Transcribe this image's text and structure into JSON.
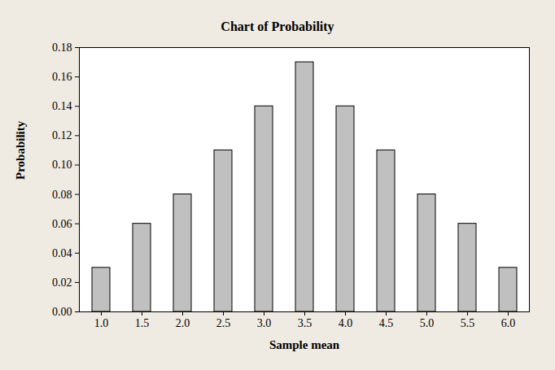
{
  "chart_data": {
    "type": "bar",
    "title": "Chart of Probability",
    "x_label": "Sample mean",
    "y_label": "Probability",
    "categories": [
      "1.0",
      "1.5",
      "2.0",
      "2.5",
      "3.0",
      "3.5",
      "4.0",
      "4.5",
      "5.0",
      "5.5",
      "6.0"
    ],
    "values": [
      0.03,
      0.06,
      0.08,
      0.11,
      0.14,
      0.17,
      0.14,
      0.11,
      0.08,
      0.06,
      0.03
    ],
    "color": "#c0c0c0",
    "ylim": [
      0,
      0.18
    ],
    "yticks": [
      {
        "value": 0,
        "label": "0.00"
      },
      0.02,
      0.04,
      0.06,
      0.08,
      {
        "value": 0.1,
        "label": "0.10"
      },
      0.12,
      0.14,
      0.16,
      0.18
    ],
    "grid": false
  }
}
